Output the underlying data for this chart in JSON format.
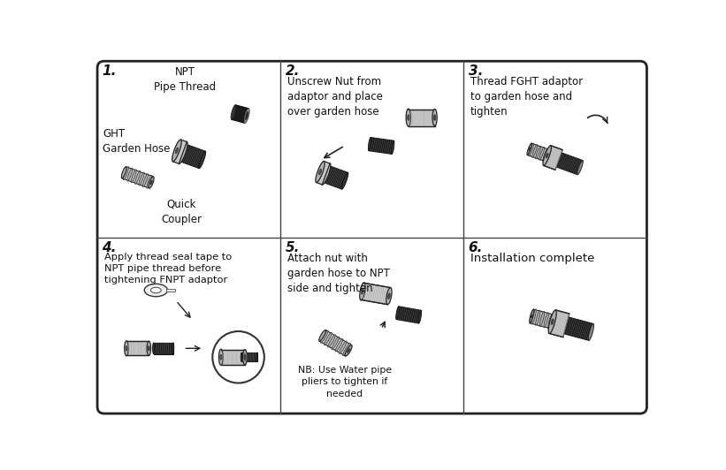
{
  "background_color": "#ffffff",
  "outer_border_color": "#222222",
  "inner_border_color": "#444444",
  "outer_border_lw": 2.0,
  "inner_border_lw": 1.0,
  "panels": [
    {
      "step": "1.",
      "label1": "NPT\nPipe Thread",
      "label2": "GHT\nGarden Hose",
      "label3": "Quick\nCoupler"
    },
    {
      "step": "2.",
      "text": "Unscrew Nut from\nadaptor and place\nover garden hose"
    },
    {
      "step": "3.",
      "text": "Thread FGHT adaptor\nto garden hose and\ntighten"
    },
    {
      "step": "4.",
      "text": "Apply thread seal tape to\nNPT pipe thread before\ntightening FNPT adaptor"
    },
    {
      "step": "5.",
      "text": "Attach nut with\ngarden hose to NPT\nside and tighten",
      "note": "NB: Use Water pipe\npliers to tighten if\nneeded"
    },
    {
      "step": "6.",
      "text": "Installation complete"
    }
  ]
}
